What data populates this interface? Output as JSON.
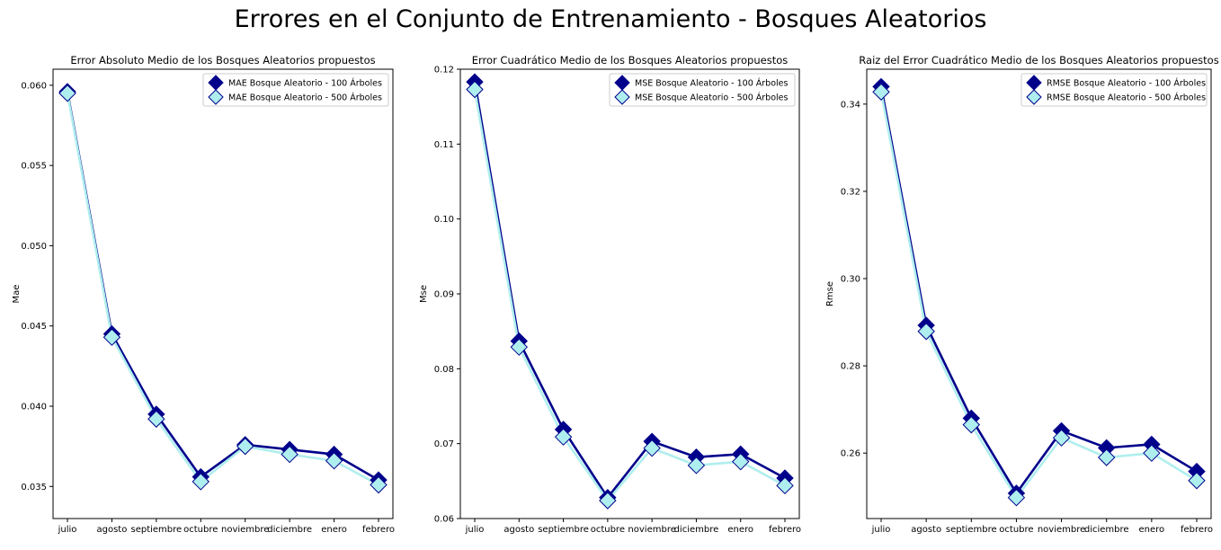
{
  "figure": {
    "title": "Errores en el Conjunto de Entrenamiento - Bosques Aleatorios"
  },
  "chart_data": [
    {
      "type": "line",
      "title": "Error Absoluto Medio de los Bosques Aleatorios propuestos",
      "xlabel": "",
      "ylabel": "Mae",
      "categories": [
        "julio",
        "agosto",
        "septiembre",
        "octubre",
        "noviembre",
        "diciembre",
        "enero",
        "febrero"
      ],
      "ylim": [
        0.033,
        0.061
      ],
      "yticks": [
        0.035,
        0.04,
        0.045,
        0.05,
        0.055,
        0.06
      ],
      "ytick_labels": [
        "0.035",
        "0.040",
        "0.045",
        "0.050",
        "0.055",
        "0.060"
      ],
      "legend": "top-right",
      "grid": false,
      "series": [
        {
          "name": "MAE Bosque Aleatorio - 100 Árboles",
          "color": "#00008b",
          "values": [
            0.0596,
            0.0445,
            0.0395,
            0.0356,
            0.0376,
            0.0373,
            0.037,
            0.0354
          ]
        },
        {
          "name": "MAE Bosque Aleatorio - 500 Árboles",
          "color": "#afeeee",
          "values": [
            0.0595,
            0.0443,
            0.0392,
            0.0353,
            0.0375,
            0.037,
            0.0366,
            0.0351
          ]
        }
      ]
    },
    {
      "type": "line",
      "title": "Error Cuadrático Medio de los Bosques Aleatorios propuestos",
      "xlabel": "",
      "ylabel": "Mse",
      "categories": [
        "julio",
        "agosto",
        "septiembre",
        "octubre",
        "noviembre",
        "diciembre",
        "enero",
        "febrero"
      ],
      "ylim": [
        0.06,
        0.12
      ],
      "yticks": [
        0.06,
        0.07,
        0.08,
        0.09,
        0.1,
        0.11,
        0.12
      ],
      "ytick_labels": [
        "0.06",
        "0.07",
        "0.08",
        "0.09",
        "0.10",
        "0.11",
        "0.12"
      ],
      "legend": "top-right",
      "grid": false,
      "series": [
        {
          "name": "MSE Bosque Aleatorio - 100 Árboles",
          "color": "#00008b",
          "values": [
            0.1183,
            0.0837,
            0.0719,
            0.0628,
            0.0703,
            0.0682,
            0.0686,
            0.0654
          ]
        },
        {
          "name": "MSE Bosque Aleatorio - 500 Árboles",
          "color": "#afeeee",
          "values": [
            0.1173,
            0.0829,
            0.0709,
            0.0624,
            0.0694,
            0.0671,
            0.0676,
            0.0644
          ]
        }
      ]
    },
    {
      "type": "line",
      "title": "Raiz del Error Cuadrático Medio de los Bosques Aleatorios propuestos",
      "xlabel": "",
      "ylabel": "Rmse",
      "categories": [
        "julio",
        "agosto",
        "septiembre",
        "octubre",
        "noviembre",
        "diciembre",
        "enero",
        "febrero"
      ],
      "ylim": [
        0.245,
        0.348
      ],
      "yticks": [
        0.26,
        0.28,
        0.3,
        0.32,
        0.34
      ],
      "ytick_labels": [
        "0.26",
        "0.28",
        "0.30",
        "0.32",
        "0.34"
      ],
      "legend": "top-right",
      "grid": false,
      "series": [
        {
          "name": "RMSE Bosque Aleatorio - 100 Árboles",
          "color": "#00008b",
          "values": [
            0.344,
            0.2893,
            0.268,
            0.2508,
            0.2651,
            0.2612,
            0.262,
            0.2558
          ]
        },
        {
          "name": "RMSE Bosque Aleatorio - 500 Árboles",
          "color": "#afeeee",
          "values": [
            0.3428,
            0.2879,
            0.2665,
            0.2498,
            0.2635,
            0.259,
            0.26,
            0.2537
          ]
        }
      ]
    }
  ]
}
